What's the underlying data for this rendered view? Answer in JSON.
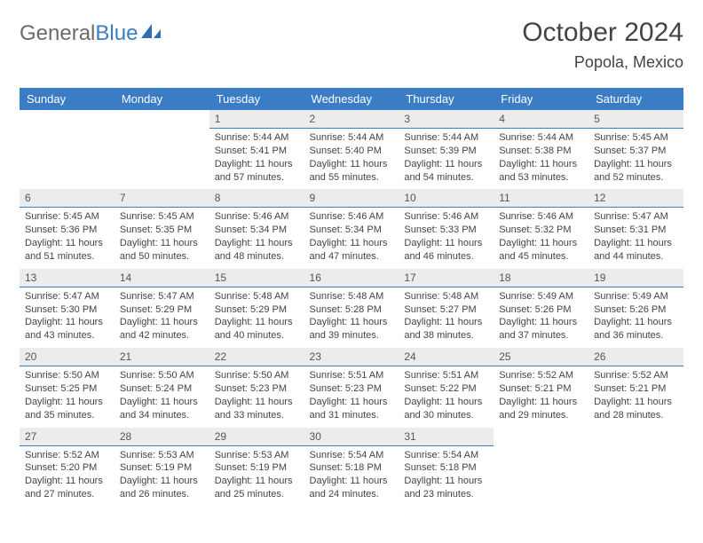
{
  "logo": {
    "general": "General",
    "blue": "Blue"
  },
  "title": "October 2024",
  "location": "Popola, Mexico",
  "colors": {
    "header_bg": "#3b7dc4",
    "header_text": "#ffffff",
    "daynum_bg": "#ececec",
    "daynum_border": "#3b7dc4",
    "page_bg": "#ffffff"
  },
  "daynames": [
    "Sunday",
    "Monday",
    "Tuesday",
    "Wednesday",
    "Thursday",
    "Friday",
    "Saturday"
  ],
  "weeks": [
    [
      null,
      null,
      {
        "n": "1",
        "sr": "Sunrise: 5:44 AM",
        "ss": "Sunset: 5:41 PM",
        "dl": "Daylight: 11 hours and 57 minutes."
      },
      {
        "n": "2",
        "sr": "Sunrise: 5:44 AM",
        "ss": "Sunset: 5:40 PM",
        "dl": "Daylight: 11 hours and 55 minutes."
      },
      {
        "n": "3",
        "sr": "Sunrise: 5:44 AM",
        "ss": "Sunset: 5:39 PM",
        "dl": "Daylight: 11 hours and 54 minutes."
      },
      {
        "n": "4",
        "sr": "Sunrise: 5:44 AM",
        "ss": "Sunset: 5:38 PM",
        "dl": "Daylight: 11 hours and 53 minutes."
      },
      {
        "n": "5",
        "sr": "Sunrise: 5:45 AM",
        "ss": "Sunset: 5:37 PM",
        "dl": "Daylight: 11 hours and 52 minutes."
      }
    ],
    [
      {
        "n": "6",
        "sr": "Sunrise: 5:45 AM",
        "ss": "Sunset: 5:36 PM",
        "dl": "Daylight: 11 hours and 51 minutes."
      },
      {
        "n": "7",
        "sr": "Sunrise: 5:45 AM",
        "ss": "Sunset: 5:35 PM",
        "dl": "Daylight: 11 hours and 50 minutes."
      },
      {
        "n": "8",
        "sr": "Sunrise: 5:46 AM",
        "ss": "Sunset: 5:34 PM",
        "dl": "Daylight: 11 hours and 48 minutes."
      },
      {
        "n": "9",
        "sr": "Sunrise: 5:46 AM",
        "ss": "Sunset: 5:34 PM",
        "dl": "Daylight: 11 hours and 47 minutes."
      },
      {
        "n": "10",
        "sr": "Sunrise: 5:46 AM",
        "ss": "Sunset: 5:33 PM",
        "dl": "Daylight: 11 hours and 46 minutes."
      },
      {
        "n": "11",
        "sr": "Sunrise: 5:46 AM",
        "ss": "Sunset: 5:32 PM",
        "dl": "Daylight: 11 hours and 45 minutes."
      },
      {
        "n": "12",
        "sr": "Sunrise: 5:47 AM",
        "ss": "Sunset: 5:31 PM",
        "dl": "Daylight: 11 hours and 44 minutes."
      }
    ],
    [
      {
        "n": "13",
        "sr": "Sunrise: 5:47 AM",
        "ss": "Sunset: 5:30 PM",
        "dl": "Daylight: 11 hours and 43 minutes."
      },
      {
        "n": "14",
        "sr": "Sunrise: 5:47 AM",
        "ss": "Sunset: 5:29 PM",
        "dl": "Daylight: 11 hours and 42 minutes."
      },
      {
        "n": "15",
        "sr": "Sunrise: 5:48 AM",
        "ss": "Sunset: 5:29 PM",
        "dl": "Daylight: 11 hours and 40 minutes."
      },
      {
        "n": "16",
        "sr": "Sunrise: 5:48 AM",
        "ss": "Sunset: 5:28 PM",
        "dl": "Daylight: 11 hours and 39 minutes."
      },
      {
        "n": "17",
        "sr": "Sunrise: 5:48 AM",
        "ss": "Sunset: 5:27 PM",
        "dl": "Daylight: 11 hours and 38 minutes."
      },
      {
        "n": "18",
        "sr": "Sunrise: 5:49 AM",
        "ss": "Sunset: 5:26 PM",
        "dl": "Daylight: 11 hours and 37 minutes."
      },
      {
        "n": "19",
        "sr": "Sunrise: 5:49 AM",
        "ss": "Sunset: 5:26 PM",
        "dl": "Daylight: 11 hours and 36 minutes."
      }
    ],
    [
      {
        "n": "20",
        "sr": "Sunrise: 5:50 AM",
        "ss": "Sunset: 5:25 PM",
        "dl": "Daylight: 11 hours and 35 minutes."
      },
      {
        "n": "21",
        "sr": "Sunrise: 5:50 AM",
        "ss": "Sunset: 5:24 PM",
        "dl": "Daylight: 11 hours and 34 minutes."
      },
      {
        "n": "22",
        "sr": "Sunrise: 5:50 AM",
        "ss": "Sunset: 5:23 PM",
        "dl": "Daylight: 11 hours and 33 minutes."
      },
      {
        "n": "23",
        "sr": "Sunrise: 5:51 AM",
        "ss": "Sunset: 5:23 PM",
        "dl": "Daylight: 11 hours and 31 minutes."
      },
      {
        "n": "24",
        "sr": "Sunrise: 5:51 AM",
        "ss": "Sunset: 5:22 PM",
        "dl": "Daylight: 11 hours and 30 minutes."
      },
      {
        "n": "25",
        "sr": "Sunrise: 5:52 AM",
        "ss": "Sunset: 5:21 PM",
        "dl": "Daylight: 11 hours and 29 minutes."
      },
      {
        "n": "26",
        "sr": "Sunrise: 5:52 AM",
        "ss": "Sunset: 5:21 PM",
        "dl": "Daylight: 11 hours and 28 minutes."
      }
    ],
    [
      {
        "n": "27",
        "sr": "Sunrise: 5:52 AM",
        "ss": "Sunset: 5:20 PM",
        "dl": "Daylight: 11 hours and 27 minutes."
      },
      {
        "n": "28",
        "sr": "Sunrise: 5:53 AM",
        "ss": "Sunset: 5:19 PM",
        "dl": "Daylight: 11 hours and 26 minutes."
      },
      {
        "n": "29",
        "sr": "Sunrise: 5:53 AM",
        "ss": "Sunset: 5:19 PM",
        "dl": "Daylight: 11 hours and 25 minutes."
      },
      {
        "n": "30",
        "sr": "Sunrise: 5:54 AM",
        "ss": "Sunset: 5:18 PM",
        "dl": "Daylight: 11 hours and 24 minutes."
      },
      {
        "n": "31",
        "sr": "Sunrise: 5:54 AM",
        "ss": "Sunset: 5:18 PM",
        "dl": "Daylight: 11 hours and 23 minutes."
      },
      null,
      null
    ]
  ]
}
